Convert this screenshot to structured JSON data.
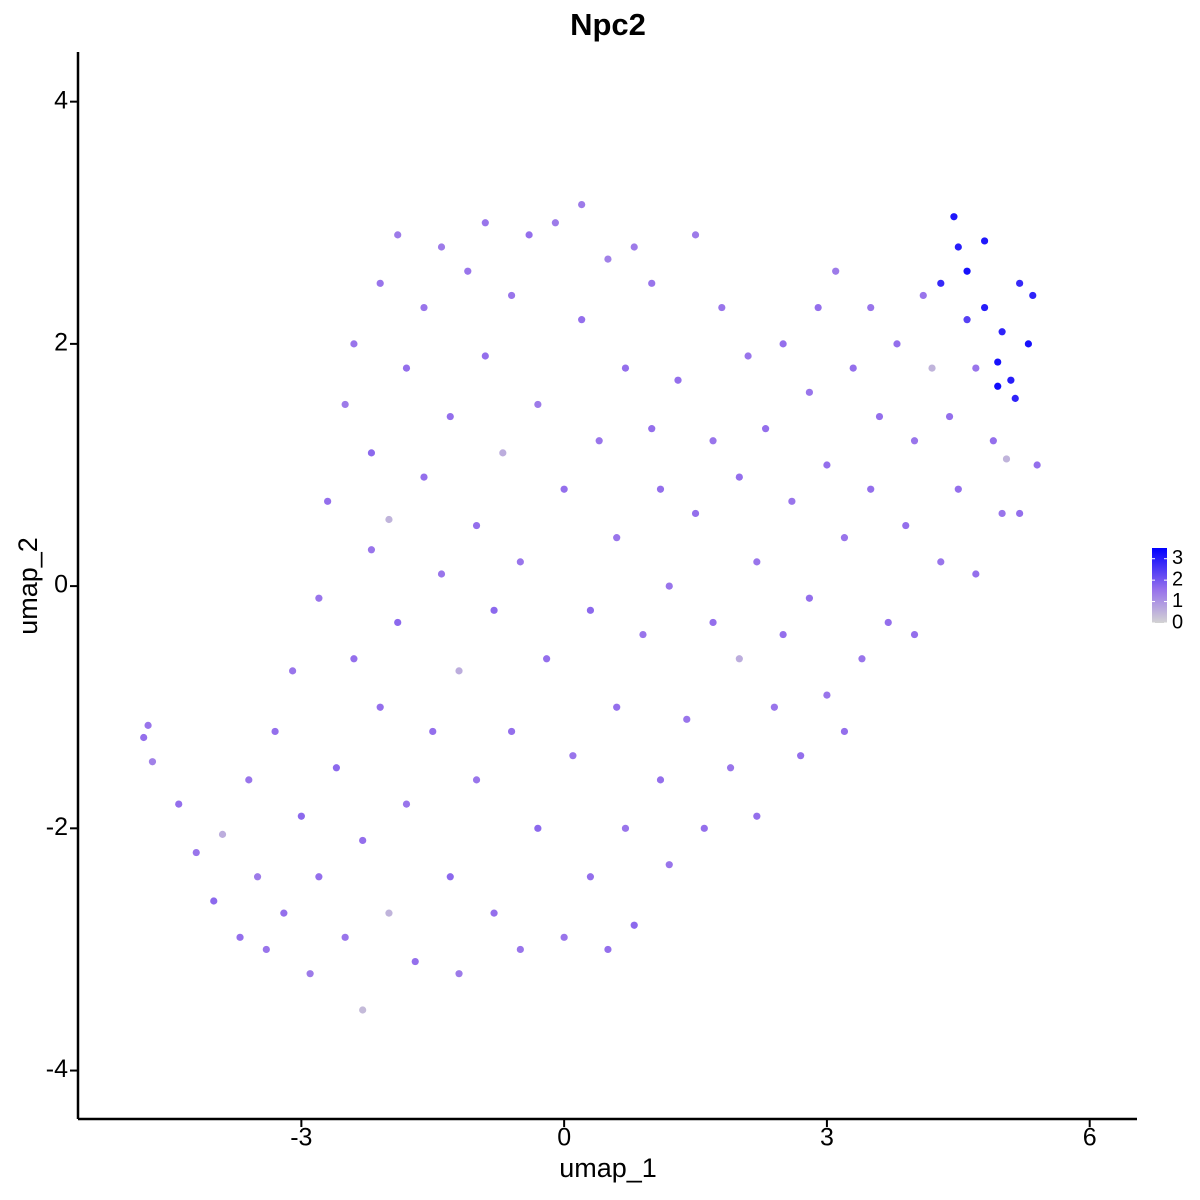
{
  "chart_data": {
    "type": "scatter",
    "title": "Npc2",
    "x_label": "umap_1",
    "y_label": "umap_2",
    "xlim": [
      -5.55,
      6.54
    ],
    "ylim": [
      -4.4,
      4.41
    ],
    "xticks": [
      -3,
      0,
      3,
      6
    ],
    "yticks": [
      -4,
      -2,
      0,
      2,
      4
    ],
    "colorbar": {
      "limits": [
        0,
        3.5
      ],
      "ticks": [
        0,
        1,
        2,
        3
      ],
      "low": "lightgrey",
      "high": "blue"
    },
    "x": [
      -4.8,
      -4.75,
      -4.7,
      -4.4,
      -4.2,
      -4.0,
      -3.9,
      -3.7,
      -3.6,
      -3.5,
      -3.4,
      -3.3,
      -3.2,
      -3.1,
      -3.0,
      -2.9,
      -2.8,
      -2.8,
      -2.7,
      -2.6,
      -2.5,
      -2.5,
      -2.4,
      -2.4,
      -2.3,
      -2.3,
      -2.2,
      -2.2,
      -2.1,
      -2.1,
      -2.0,
      -2.0,
      -1.9,
      -1.9,
      -1.8,
      -1.8,
      -1.7,
      -1.6,
      -1.6,
      -1.5,
      -1.4,
      -1.4,
      -1.3,
      -1.3,
      -1.2,
      -1.2,
      -1.1,
      -1.0,
      -1.0,
      -0.9,
      -0.9,
      -0.8,
      -0.8,
      -0.7,
      -0.6,
      -0.6,
      -0.5,
      -0.5,
      -0.4,
      -0.3,
      -0.3,
      -0.2,
      -0.1,
      0.0,
      0.0,
      0.1,
      0.2,
      0.2,
      0.3,
      0.3,
      0.4,
      0.5,
      0.5,
      0.6,
      0.6,
      0.7,
      0.7,
      0.8,
      0.8,
      0.9,
      1.0,
      1.0,
      1.1,
      1.1,
      1.2,
      1.2,
      1.3,
      1.4,
      1.5,
      1.5,
      1.6,
      1.7,
      1.7,
      1.8,
      1.9,
      2.0,
      2.0,
      2.1,
      2.2,
      2.2,
      2.3,
      2.4,
      2.5,
      2.5,
      2.6,
      2.7,
      2.8,
      2.8,
      2.9,
      3.0,
      3.0,
      3.1,
      3.2,
      3.2,
      3.3,
      3.4,
      3.5,
      3.5,
      3.6,
      3.7,
      3.8,
      3.9,
      4.0,
      4.0,
      4.1,
      4.2,
      4.3,
      4.3,
      4.4,
      4.45,
      4.5,
      4.5,
      4.6,
      4.6,
      4.7,
      4.7,
      4.8,
      4.8,
      4.9,
      4.95,
      5.0,
      5.0,
      5.05,
      5.1,
      5.2,
      5.2,
      5.3,
      5.35,
      5.4,
      4.95,
      5.15
    ],
    "values": [
      -1.25,
      -1.15,
      -1.45,
      -1.8,
      -2.2,
      -2.6,
      -2.05,
      -2.9,
      -1.6,
      -2.4,
      -3.0,
      -1.2,
      -2.7,
      -0.7,
      -1.9,
      -3.2,
      -0.1,
      -2.4,
      0.7,
      -1.5,
      -2.9,
      1.5,
      -0.6,
      2.0,
      -3.5,
      -2.1,
      0.3,
      1.1,
      2.5,
      -1.0,
      -2.7,
      0.55,
      2.9,
      -0.3,
      1.8,
      -1.8,
      -3.1,
      0.9,
      2.3,
      -1.2,
      2.8,
      0.1,
      -2.4,
      1.4,
      -3.2,
      -0.7,
      2.6,
      0.5,
      -1.6,
      3.0,
      1.9,
      -2.7,
      -0.2,
      1.1,
      2.4,
      -1.2,
      -3.0,
      0.2,
      2.9,
      1.5,
      -2.0,
      -0.6,
      3.0,
      0.8,
      -2.9,
      -1.4,
      3.15,
      2.2,
      -0.2,
      -2.4,
      1.2,
      2.7,
      -3.0,
      -1.0,
      0.4,
      1.8,
      -2.0,
      -2.8,
      2.8,
      -0.4,
      1.3,
      2.5,
      -1.6,
      0.8,
      -2.3,
      0.0,
      1.7,
      -1.1,
      2.9,
      0.6,
      -2.0,
      1.2,
      -0.3,
      2.3,
      -1.5,
      0.9,
      -0.6,
      1.9,
      -1.9,
      0.2,
      1.3,
      -1.0,
      2.0,
      -0.4,
      0.7,
      -1.4,
      1.6,
      -0.1,
      2.3,
      -0.9,
      1.0,
      2.6,
      0.4,
      -1.2,
      1.8,
      -0.6,
      2.3,
      0.8,
      1.4,
      -0.3,
      2.0,
      0.5,
      1.2,
      -0.4,
      2.4,
      1.8,
      0.2,
      2.5,
      1.4,
      3.05,
      0.8,
      2.8,
      2.2,
      2.6,
      1.8,
      0.1,
      2.3,
      2.85,
      1.2,
      1.85,
      0.6,
      2.1,
      1.05,
      1.7,
      2.5,
      0.6,
      2.0,
      2.4,
      1.0,
      1.65,
      1.55
    ],
    "expression": [
      1.6,
      1.5,
      1.3,
      1.6,
      1.5,
      1.7,
      0.6,
      1.6,
      1.5,
      1.4,
      1.5,
      1.6,
      1.6,
      1.5,
      1.7,
      1.4,
      1.5,
      1.6,
      1.6,
      1.7,
      1.5,
      1.4,
      1.6,
      1.5,
      0.4,
      1.6,
      1.5,
      1.7,
      1.5,
      1.6,
      0.5,
      0.5,
      1.4,
      1.7,
      1.6,
      1.5,
      1.6,
      1.6,
      1.5,
      1.6,
      1.4,
      1.5,
      1.7,
      1.6,
      1.4,
      0.6,
      1.5,
      1.6,
      1.5,
      1.5,
      1.6,
      1.6,
      1.7,
      0.6,
      1.5,
      1.6,
      1.5,
      1.5,
      1.6,
      1.4,
      1.7,
      1.6,
      1.4,
      1.6,
      1.5,
      1.5,
      1.4,
      1.6,
      1.7,
      1.6,
      1.5,
      1.3,
      1.6,
      1.6,
      1.5,
      1.6,
      1.5,
      1.7,
      1.4,
      1.5,
      1.6,
      1.5,
      1.6,
      1.6,
      1.5,
      1.5,
      1.6,
      1.5,
      1.4,
      1.6,
      1.6,
      1.5,
      1.6,
      1.5,
      1.5,
      1.6,
      0.6,
      1.5,
      1.6,
      1.5,
      1.6,
      1.5,
      1.6,
      1.6,
      1.5,
      1.6,
      1.5,
      1.6,
      1.6,
      1.5,
      1.6,
      1.4,
      1.5,
      1.6,
      1.6,
      1.5,
      1.5,
      1.6,
      1.6,
      1.6,
      1.6,
      1.6,
      1.5,
      1.6,
      1.5,
      0.5,
      1.5,
      2.8,
      1.6,
      3.1,
      1.6,
      3.0,
      2.4,
      3.2,
      1.5,
      1.6,
      3.0,
      3.1,
      1.6,
      3.2,
      1.5,
      2.9,
      0.5,
      3.0,
      2.8,
      1.6,
      3.2,
      2.9,
      1.6,
      3.3,
      2.9
    ]
  }
}
